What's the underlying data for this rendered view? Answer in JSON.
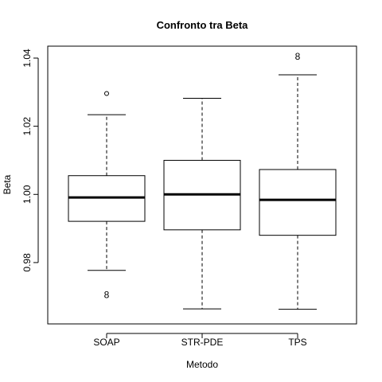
{
  "chart_data": {
    "type": "boxplot",
    "title": "Confronto tra Beta",
    "xlabel": "Metodo",
    "ylabel": "Beta",
    "ylim": [
      0.962,
      1.0435
    ],
    "y_ticks": [
      0.98,
      1.0,
      1.02,
      1.04
    ],
    "y_tick_labels": [
      "0.98",
      "1.00",
      "1.02",
      "1.04"
    ],
    "grid": false,
    "legend": "none",
    "categories": [
      "SOAP",
      "STR-PDE",
      "TPS"
    ],
    "boxes": [
      {
        "name": "SOAP",
        "whisker_low": 0.9777,
        "q1": 0.9921,
        "median": 0.9991,
        "q3": 1.0055,
        "whisker_high": 1.0234,
        "outliers": [
          {
            "y": 1.0296,
            "marker": "circle"
          },
          {
            "y": 0.9705,
            "marker": "label",
            "text": "8"
          }
        ]
      },
      {
        "name": "STR-PDE",
        "whisker_low": 0.9664,
        "q1": 0.9896,
        "median": 1.0,
        "q3": 1.01,
        "whisker_high": 1.0282,
        "outliers": []
      },
      {
        "name": "TPS",
        "whisker_low": 0.9663,
        "q1": 0.988,
        "median": 0.9984,
        "q3": 1.0073,
        "whisker_high": 1.0351,
        "outliers": [
          {
            "y": 1.0405,
            "marker": "label",
            "text": "8"
          }
        ]
      }
    ]
  }
}
